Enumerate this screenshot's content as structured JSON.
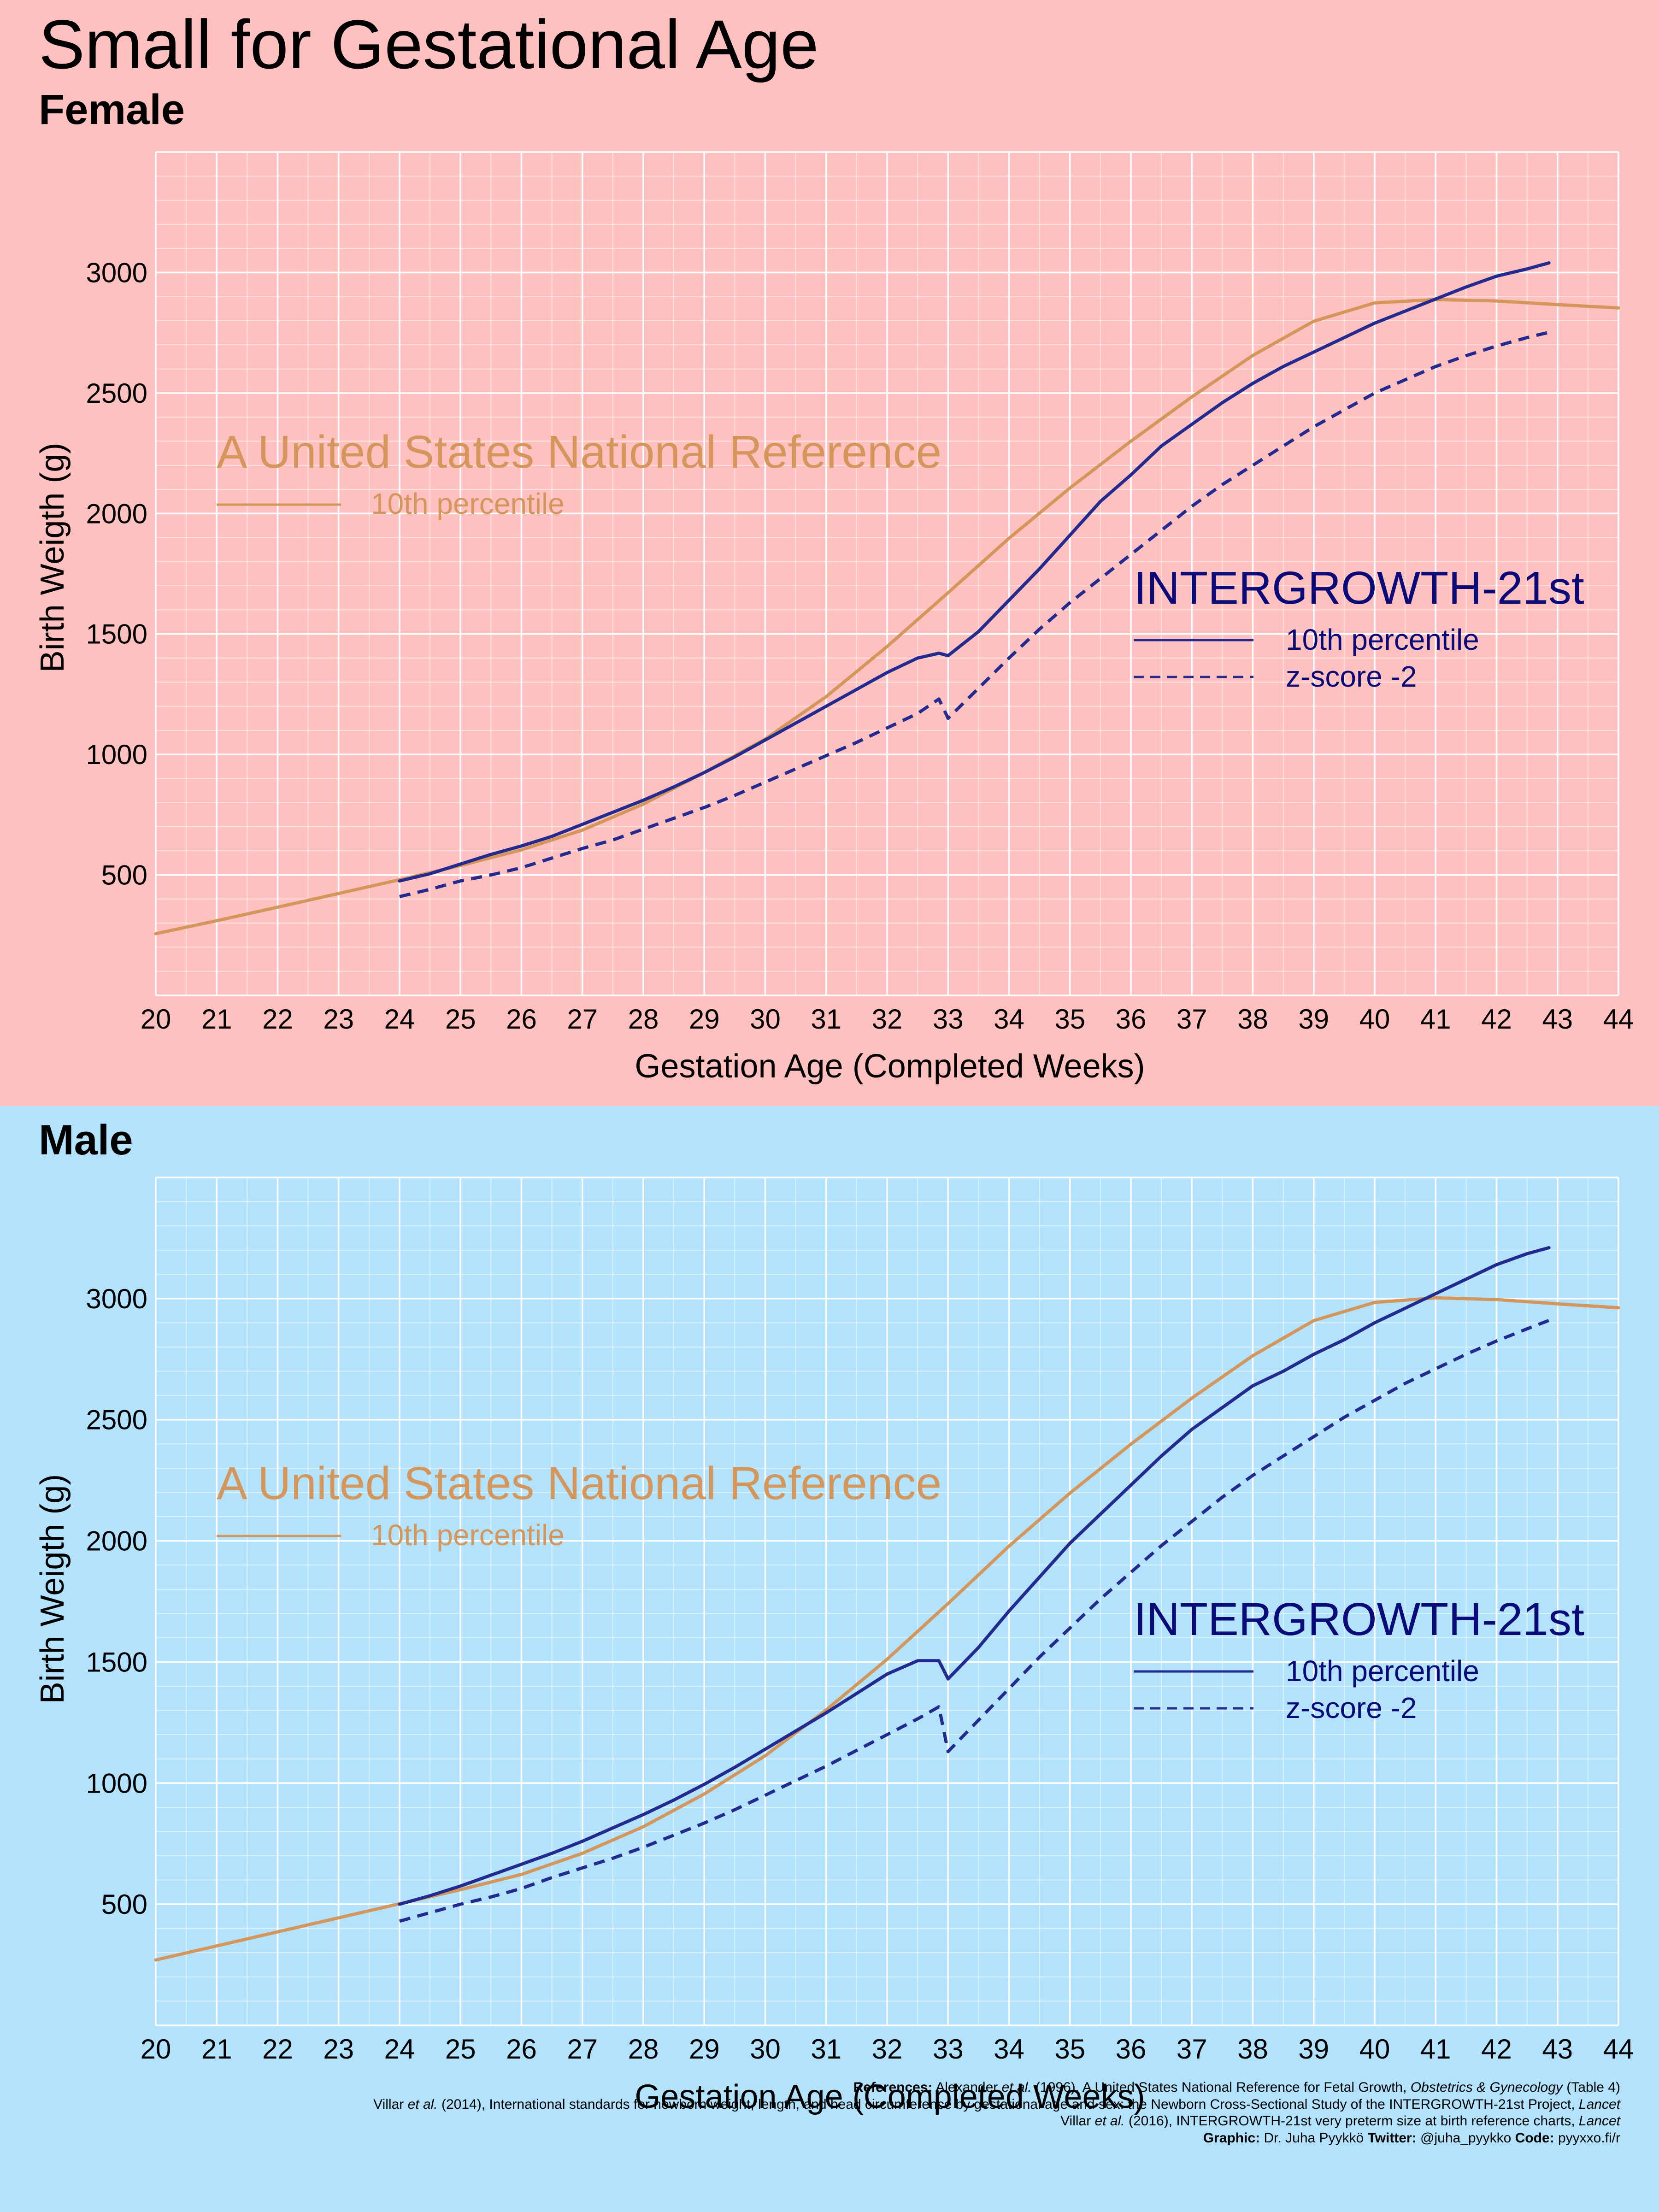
{
  "title": "Small for Gestational Age",
  "panels": [
    {
      "label": "Female"
    },
    {
      "label": "Male"
    }
  ],
  "axes": {
    "xlabel": "Gestation Age (Completed Weeks)",
    "ylabel": "Birth Weigth (g)"
  },
  "legend": {
    "us": {
      "title": "A United States National Reference",
      "items": [
        "10th percentile"
      ]
    },
    "ig": {
      "title": "INTERGROWTH-21st",
      "items": [
        "10th percentile",
        "z-score -2"
      ]
    }
  },
  "colors": {
    "female_bg": "#ffc0c0",
    "male_bg": "#b3e2fc",
    "us_line": "#d4965a",
    "ig_line": "#232b90",
    "ig_text": "#0a0a78",
    "grid": "#ffffff"
  },
  "chart_data": [
    {
      "type": "line",
      "panel": "Female",
      "xlim": [
        20,
        44
      ],
      "ylim": [
        0,
        3500
      ],
      "x_ticks": [
        20,
        21,
        22,
        23,
        24,
        25,
        26,
        27,
        28,
        29,
        30,
        31,
        32,
        33,
        34,
        35,
        36,
        37,
        38,
        39,
        40,
        41,
        42,
        43,
        44
      ],
      "y_ticks": [
        500,
        1000,
        1500,
        2000,
        2500,
        3000
      ],
      "grid": true,
      "series": [
        {
          "name": "A United States National Reference — 10th percentile",
          "style": "solid",
          "color": "us",
          "x": [
            20,
            21,
            22,
            23,
            24,
            25,
            26,
            27,
            28,
            29,
            30,
            31,
            32,
            33,
            34,
            35,
            36,
            37,
            38,
            39,
            40,
            41,
            42,
            43,
            44
          ],
          "y": [
            256,
            310,
            366,
            423,
            480,
            539,
            604,
            686,
            794,
            925,
            1064,
            1240,
            1448,
            1671,
            1897,
            2106,
            2300,
            2484,
            2656,
            2798,
            2874,
            2888,
            2882,
            2867,
            2853
          ]
        },
        {
          "name": "INTERGROWTH-21st — 10th percentile",
          "style": "solid",
          "color": "ig",
          "x": [
            24,
            24.5,
            25,
            25.5,
            26,
            26.5,
            27,
            27.5,
            28,
            28.5,
            29,
            29.5,
            30,
            30.5,
            31,
            31.5,
            32,
            32.5,
            32.85,
            33,
            33.5,
            34,
            34.5,
            35,
            35.5,
            36,
            36.5,
            37,
            37.5,
            38,
            38.5,
            39,
            39.5,
            40,
            40.5,
            41,
            41.5,
            42,
            42.5,
            42.86
          ],
          "y": [
            475,
            505,
            545,
            585,
            620,
            660,
            710,
            760,
            810,
            865,
            925,
            990,
            1060,
            1130,
            1200,
            1270,
            1340,
            1400,
            1420,
            1410,
            1510,
            1640,
            1770,
            1910,
            2050,
            2160,
            2280,
            2370,
            2460,
            2540,
            2610,
            2670,
            2730,
            2790,
            2840,
            2890,
            2940,
            2985,
            3015,
            3040
          ]
        },
        {
          "name": "INTERGROWTH-21st — z-score -2",
          "style": "dashed",
          "color": "ig",
          "x": [
            24,
            24.5,
            25,
            25.5,
            26,
            26.5,
            27,
            27.5,
            28,
            28.5,
            29,
            29.5,
            30,
            30.5,
            31,
            31.5,
            32,
            32.5,
            32.85,
            33,
            33.5,
            34,
            34.5,
            35,
            35.5,
            36,
            36.5,
            37,
            37.5,
            38,
            38.5,
            39,
            39.5,
            40,
            40.5,
            41,
            41.5,
            42,
            42.5,
            42.86
          ],
          "y": [
            410,
            440,
            475,
            500,
            530,
            570,
            610,
            645,
            690,
            735,
            780,
            830,
            885,
            940,
            995,
            1050,
            1110,
            1170,
            1230,
            1150,
            1275,
            1400,
            1520,
            1630,
            1730,
            1830,
            1930,
            2030,
            2120,
            2200,
            2280,
            2360,
            2430,
            2500,
            2555,
            2610,
            2655,
            2695,
            2730,
            2752
          ]
        }
      ]
    },
    {
      "type": "line",
      "panel": "Male",
      "xlim": [
        20,
        44
      ],
      "ylim": [
        0,
        3500
      ],
      "x_ticks": [
        20,
        21,
        22,
        23,
        24,
        25,
        26,
        27,
        28,
        29,
        30,
        31,
        32,
        33,
        34,
        35,
        36,
        37,
        38,
        39,
        40,
        41,
        42,
        43,
        44
      ],
      "y_ticks": [
        500,
        1000,
        1500,
        2000,
        2500,
        3000
      ],
      "grid": true,
      "series": [
        {
          "name": "A United States National Reference — 10th percentile",
          "style": "solid",
          "color": "us",
          "x": [
            20,
            21,
            22,
            23,
            24,
            25,
            26,
            27,
            28,
            29,
            30,
            31,
            32,
            33,
            34,
            35,
            36,
            37,
            38,
            39,
            40,
            41,
            42,
            43,
            44
          ],
          "y": [
            270,
            328,
            386,
            444,
            502,
            560,
            623,
            710,
            820,
            955,
            1113,
            1302,
            1511,
            1741,
            1978,
            2197,
            2399,
            2589,
            2764,
            2909,
            2984,
            3003,
            2996,
            2978,
            2962
          ]
        },
        {
          "name": "INTERGROWTH-21st — 10th percentile",
          "style": "solid",
          "color": "ig",
          "x": [
            24,
            24.5,
            25,
            25.5,
            26,
            26.5,
            27,
            27.5,
            28,
            28.5,
            29,
            29.5,
            30,
            30.5,
            31,
            31.5,
            32,
            32.5,
            32.85,
            33,
            33.5,
            34,
            34.5,
            35,
            35.5,
            36,
            36.5,
            37,
            37.5,
            38,
            38.5,
            39,
            39.5,
            40,
            40.5,
            41,
            41.5,
            42,
            42.5,
            42.86
          ],
          "y": [
            500,
            535,
            575,
            620,
            665,
            710,
            760,
            815,
            870,
            930,
            995,
            1065,
            1140,
            1215,
            1290,
            1370,
            1450,
            1505,
            1505,
            1430,
            1560,
            1710,
            1850,
            1990,
            2110,
            2230,
            2350,
            2460,
            2550,
            2640,
            2700,
            2770,
            2830,
            2900,
            2960,
            3020,
            3080,
            3140,
            3185,
            3210
          ]
        },
        {
          "name": "INTERGROWTH-21st — z-score -2",
          "style": "dashed",
          "color": "ig",
          "x": [
            24,
            24.5,
            25,
            25.5,
            26,
            26.5,
            27,
            27.5,
            28,
            28.5,
            29,
            29.5,
            30,
            30.5,
            31,
            31.5,
            32,
            32.5,
            32.85,
            33,
            33.5,
            34,
            34.5,
            35,
            35.5,
            36,
            36.5,
            37,
            37.5,
            38,
            38.5,
            39,
            39.5,
            40,
            40.5,
            41,
            41.5,
            42,
            42.5,
            42.86
          ],
          "y": [
            430,
            465,
            500,
            530,
            565,
            610,
            650,
            690,
            735,
            785,
            835,
            890,
            950,
            1010,
            1070,
            1135,
            1200,
            1265,
            1315,
            1130,
            1260,
            1390,
            1520,
            1640,
            1760,
            1870,
            1980,
            2080,
            2180,
            2270,
            2350,
            2430,
            2510,
            2580,
            2650,
            2710,
            2770,
            2825,
            2875,
            2910
          ]
        }
      ]
    }
  ],
  "references": {
    "line1": {
      "label": "References:",
      "author": "Alexander",
      "etal": "et al.",
      "rest": "(1996), A United States National Reference for Fetal Growth,",
      "journal": "Obstetrics & Gynecology",
      "tail": "(Table 4)"
    },
    "line2": {
      "author": "Villar",
      "etal": "et al.",
      "rest": "(2014), International standards for newborn weight, length, and head circumference by gestational age and sex: the Newborn Cross-Sectional Study of the INTERGROWTH-21st Project,",
      "journal": "Lancet"
    },
    "line3": {
      "author": "Villar",
      "etal": "et al.",
      "rest": "(2016), INTERGROWTH-21st very preterm size at birth reference charts,",
      "journal": "Lancet"
    },
    "line4": {
      "graphic_label": "Graphic:",
      "graphic": "Dr. Juha Pyykkö",
      "twitter_label": "Twitter:",
      "twitter": "@juha_pyykko",
      "code_label": "Code:",
      "code": "pyyxxo.fi/r"
    }
  }
}
